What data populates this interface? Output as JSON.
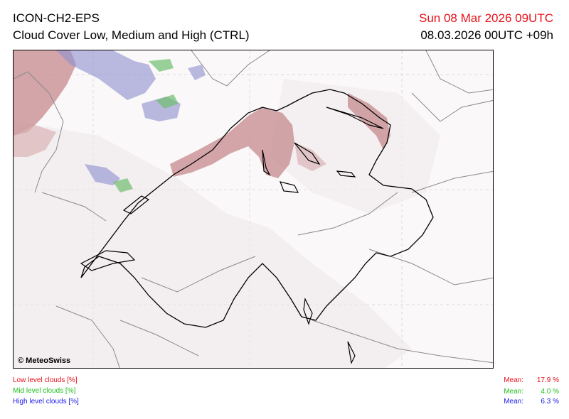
{
  "header": {
    "model": "ICON-CH2-EPS",
    "subtitle": "Cloud Cover Low, Medium and High (CTRL)",
    "valid_time": "Sun 08 Mar 2026 09UTC",
    "run_time": "08.03.2026 00UTC +09h"
  },
  "map": {
    "copyright": "© MeteoSwiss"
  },
  "legend": {
    "low": {
      "label": "Low level clouds [%]",
      "mean_label": "Mean:",
      "mean_value": "17.9 %",
      "color": "#e8101a"
    },
    "mid": {
      "label": "Mid level clouds [%]",
      "mean_label": "Mean:",
      "mean_value": "4.0 %",
      "color": "#20c020"
    },
    "high": {
      "label": "High level clouds [%]",
      "mean_label": "Mean:",
      "mean_value": "6.3 %",
      "color": "#1a1ae8"
    }
  }
}
